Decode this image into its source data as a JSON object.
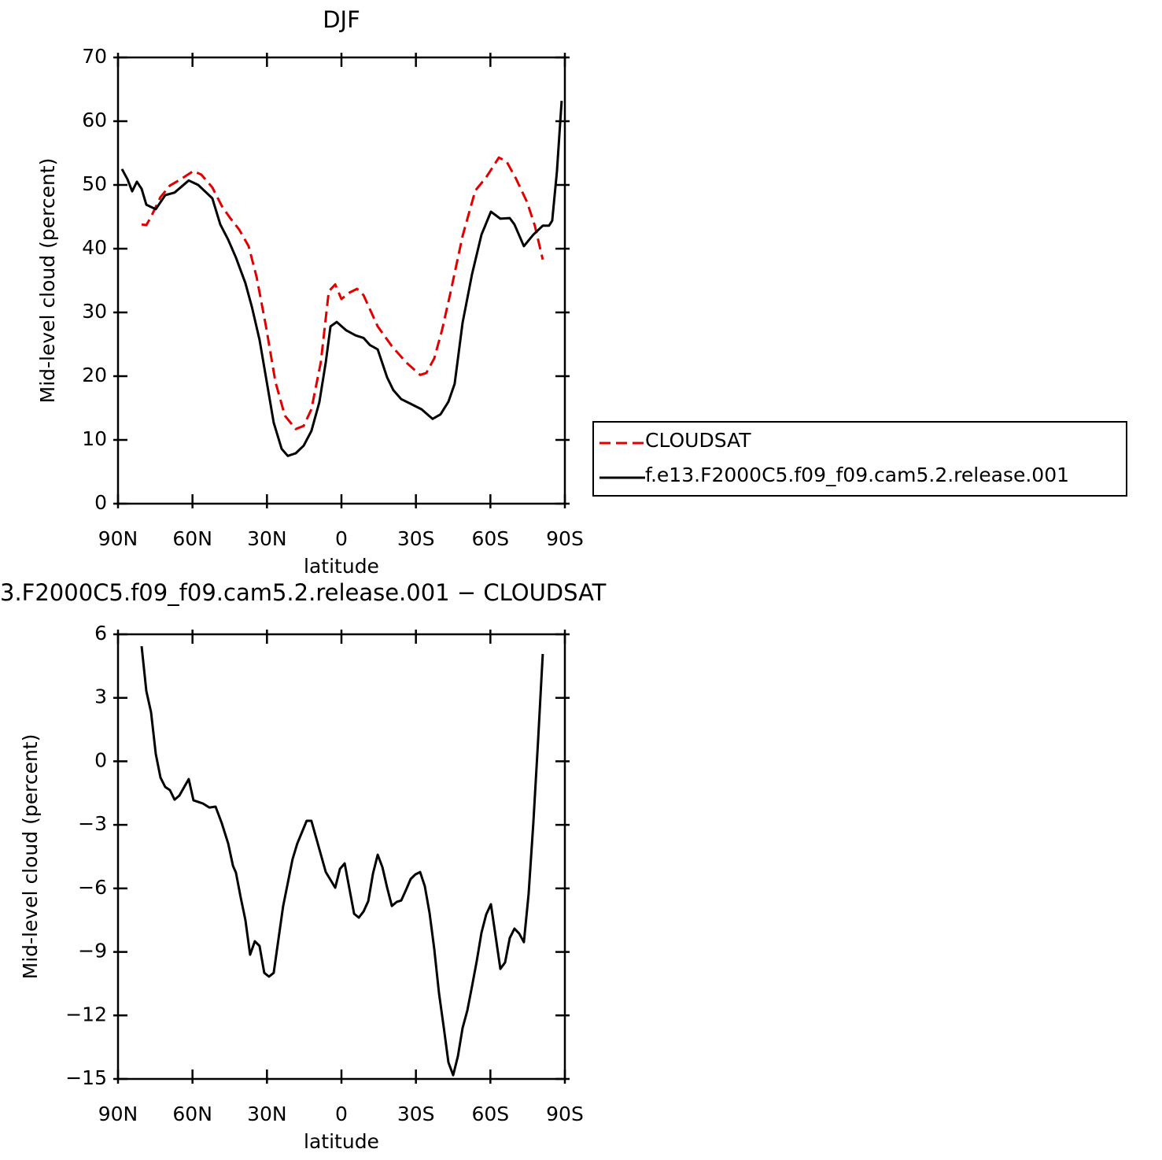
{
  "chart_data": [
    {
      "type": "line",
      "title": "DJF",
      "xlabel": "latitude",
      "ylabel": "Mid-level cloud (percent)",
      "xlim": [
        90,
        -90
      ],
      "xticks": [
        {
          "value": 90,
          "label": "90N"
        },
        {
          "value": 60,
          "label": "60N"
        },
        {
          "value": 30,
          "label": "30N"
        },
        0,
        {
          "value": -30,
          "label": "30S"
        },
        {
          "value": -60,
          "label": "60S"
        },
        {
          "value": -90,
          "label": "90S"
        }
      ],
      "ylim": [
        0,
        70
      ],
      "yticks": [
        0,
        10,
        20,
        30,
        40,
        50,
        60,
        70
      ],
      "legend": "right",
      "series": [
        {
          "name": "CLOUDSAT",
          "color": "#e00000",
          "line_style": "dashed",
          "x": [
            80.5,
            78.6,
            76.7,
            72.9,
            69.1,
            64.7,
            59.6,
            56.4,
            52,
            48.2,
            45,
            41.2,
            37.4,
            34.2,
            30.4,
            26.6,
            22.8,
            18.4,
            15.2,
            12.1,
            8.3,
            5.1,
            2.5,
            0,
            -3.2,
            -6.3,
            -8.9,
            -14.6,
            -20.3,
            -26,
            -31.7,
            -34.2,
            -37.4,
            -40.5,
            -43.7,
            -48.8,
            -53.9,
            -58.3,
            -63.4,
            -66.5,
            -70.3,
            -74.8,
            -77.9,
            -81.1
          ],
          "values": [
            43.8,
            43.7,
            45,
            48.1,
            49.9,
            50.9,
            52.2,
            51.6,
            49.6,
            46.7,
            44.9,
            43,
            40.4,
            35.6,
            27.8,
            19.1,
            13.8,
            11.7,
            12.2,
            14.8,
            22.2,
            33.3,
            34.4,
            32.1,
            33.1,
            33.7,
            32.7,
            27.8,
            24.7,
            22.2,
            20.2,
            20.5,
            22.8,
            27.2,
            32.7,
            42,
            49.1,
            51.2,
            54.3,
            53.7,
            51,
            47.3,
            43.6,
            38.3
          ]
        },
        {
          "name": "f.e13.F2000C5.f09_f09.cam5.2.release.001",
          "color": "#000000",
          "line_style": "solid",
          "x": [
            88.4,
            86.2,
            84.3,
            82.4,
            80.5,
            78.6,
            74.8,
            71,
            67.2,
            61.5,
            57.7,
            52,
            48.8,
            45.6,
            42.5,
            38.7,
            36.1,
            33,
            30.4,
            27.3,
            24.1,
            21.6,
            18.4,
            15.2,
            12.1,
            8.9,
            6.3,
            4.4,
            1.9,
            -1.9,
            -5.7,
            -8.9,
            -11.4,
            -14.6,
            -18.4,
            -20.9,
            -24.1,
            -27.2,
            -32.3,
            -36.7,
            -39.9,
            -43.1,
            -45.6,
            -48.8,
            -52.6,
            -56.4,
            -60.2,
            -64,
            -67.8,
            -69.7,
            -73.5,
            -77.3,
            -81.1,
            -83.6,
            -84.9,
            -86.8,
            -88.7
          ],
          "values": [
            52.5,
            50.9,
            49,
            50.5,
            49.4,
            46.9,
            46.2,
            48.4,
            48.8,
            50.7,
            50,
            47.9,
            43.8,
            41.4,
            38.6,
            34.6,
            30.9,
            25.7,
            19.8,
            12.7,
            8.6,
            7.5,
            7.9,
            9.1,
            11.4,
            15.9,
            22.2,
            27.8,
            28.5,
            27.2,
            26.4,
            26,
            24.9,
            24.2,
            19.8,
            17.8,
            16.4,
            15.8,
            14.8,
            13.3,
            14,
            16,
            18.8,
            28.4,
            36,
            42.2,
            45.8,
            44.7,
            44.8,
            43.8,
            40.4,
            42.2,
            43.6,
            43.6,
            44.4,
            52.1,
            63.2
          ]
        }
      ]
    },
    {
      "type": "line",
      "title": "3.F2000C5.f09_f09.cam5.2.release.001  −  CLOUDSAT",
      "xlabel": "latitude",
      "ylabel": "Mid-level cloud (percent)",
      "xlim": [
        90,
        -90
      ],
      "xticks": [
        {
          "value": 90,
          "label": "90N"
        },
        {
          "value": 60,
          "label": "60N"
        },
        {
          "value": 30,
          "label": "30N"
        },
        0,
        {
          "value": -30,
          "label": "30S"
        },
        {
          "value": -60,
          "label": "60S"
        },
        {
          "value": -90,
          "label": "90S"
        }
      ],
      "ylim": [
        -15,
        6
      ],
      "yticks": [
        {
          "value": -15,
          "label": "−15"
        },
        {
          "value": -12,
          "label": "−12"
        },
        {
          "value": -9,
          "label": "−9"
        },
        {
          "value": -6,
          "label": "−6"
        },
        {
          "value": -3,
          "label": "−3"
        },
        0,
        3,
        6
      ],
      "series": [
        {
          "color": "#000000",
          "line_style": "solid",
          "x": [
            80.5,
            78.6,
            76.7,
            74.8,
            72.9,
            71,
            69.1,
            67.2,
            65.3,
            61.5,
            59.6,
            55.8,
            53.2,
            50.7,
            48.2,
            45.6,
            43.7,
            42.5,
            40.6,
            38.7,
            36.8,
            34.9,
            33,
            31.1,
            29.2,
            27.3,
            23.5,
            19.7,
            17.8,
            14,
            12.1,
            6.3,
            2.5,
            0.6,
            -1.3,
            -5.1,
            -7,
            -8.9,
            -10.8,
            -12.7,
            -14.6,
            -16.5,
            -18.4,
            -20.3,
            -22.2,
            -24.1,
            -26,
            -27.9,
            -29.8,
            -31.7,
            -33.6,
            -35.5,
            -37.4,
            -39.3,
            -41.2,
            -43.1,
            -45,
            -46.9,
            -48.8,
            -50.7,
            -52.6,
            -54.5,
            -56.4,
            -58.3,
            -60.2,
            -62.1,
            -64,
            -65.9,
            -67.8,
            -69.7,
            -71.6,
            -73.5,
            -75.4,
            -77.3,
            -79.2,
            -81.1
          ],
          "values": [
            5.44,
            3.32,
            2.32,
            0.35,
            -0.77,
            -1.21,
            -1.36,
            -1.81,
            -1.62,
            -0.84,
            -1.84,
            -1.99,
            -2.18,
            -2.14,
            -2.92,
            -3.89,
            -4.93,
            -5.26,
            -6.42,
            -7.49,
            -9.13,
            -8.5,
            -8.72,
            -9.99,
            -10.17,
            -9.99,
            -6.86,
            -4.63,
            -3.89,
            -2.81,
            -2.81,
            -5.23,
            -5.97,
            -5.08,
            -4.82,
            -7.2,
            -7.38,
            -7.09,
            -6.6,
            -5.3,
            -4.41,
            -5,
            -5.97,
            -6.83,
            -6.64,
            -6.57,
            -6.08,
            -5.56,
            -5.34,
            -5.23,
            -5.9,
            -7.16,
            -8.87,
            -10.95,
            -12.55,
            -14.22,
            -14.82,
            -13.93,
            -12.59,
            -11.77,
            -10.62,
            -9.43,
            -8.09,
            -7.23,
            -6.75,
            -8.27,
            -9.8,
            -9.5,
            -8.35,
            -7.9,
            -8.13,
            -8.54,
            -6.27,
            -2.92,
            0.94,
            5.07
          ]
        }
      ]
    }
  ]
}
